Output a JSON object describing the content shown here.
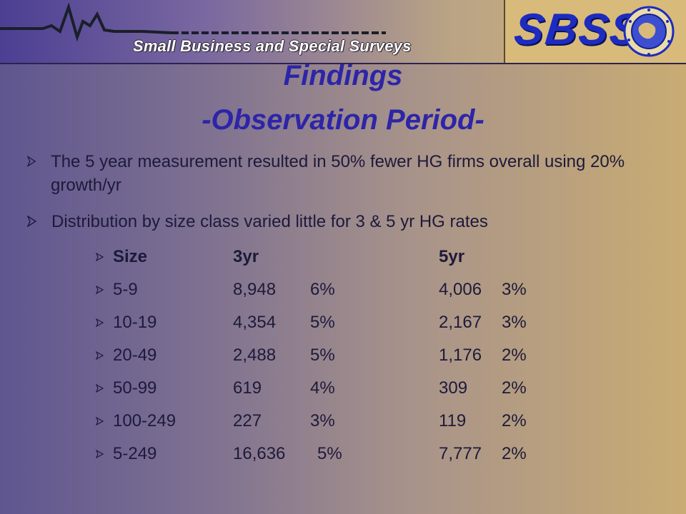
{
  "header": {
    "subtitle": "Small Business and Special Surveys",
    "logo_text": "SBSS",
    "brand_colors": {
      "logo_blue": "#1d2bc0",
      "title_blue": "#2d25a8"
    }
  },
  "title": {
    "line1": "Findings",
    "line2": "-Observation Period-"
  },
  "bullets": [
    {
      "text": "The 5 year measurement resulted in 50% fewer HG firms overall using 20% growth/yr",
      "icon": "arrow-bullet-icon"
    },
    {
      "text": "Distribution by size class varied little for 3 & 5 yr HG rates",
      "icon": "arrow-bullet-icon"
    }
  ],
  "table": {
    "headers": {
      "size": "Size",
      "three_yr": "3yr",
      "five_yr": "5yr"
    },
    "rows": [
      {
        "size": "5-9",
        "n3": "8,948",
        "p3": "6%",
        "n5": "4,006",
        "p5": "3%"
      },
      {
        "size": "10-19",
        "n3": "4,354",
        "p3": "5%",
        "n5": "2,167",
        "p5": "3%"
      },
      {
        "size": "20-49",
        "n3": "2,488",
        "p3": "5%",
        "n5": "1,176",
        "p5": "2%"
      },
      {
        "size": "50-99",
        "n3": "619",
        "p3": "4%",
        "n5": "309",
        "p5": "2%"
      },
      {
        "size": "100-249",
        "n3": "227",
        "p3": "3%",
        "n5": "119",
        "p5": "2%"
      },
      {
        "size": "5-249",
        "n3": "16,636",
        "p3": "5%",
        "n5": "7,777",
        "p5": "2%"
      }
    ]
  }
}
